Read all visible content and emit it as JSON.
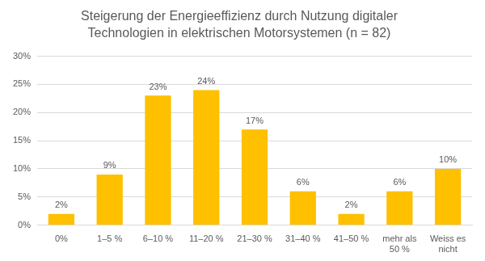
{
  "chart_data": {
    "type": "bar",
    "title": [
      "Steigerung der Energieeffizienz durch Nutzung digitaler",
      "Technologien in elektrischen Motorsystemen (n = 82)"
    ],
    "categories": [
      "0%",
      "1–5 %",
      "6–10 %",
      "11–20 %",
      "21–30 %",
      "31–40 %",
      "41–50 %",
      "mehr als 50 %",
      "Weiss es nicht"
    ],
    "values": [
      2,
      9,
      23,
      24,
      17,
      6,
      2,
      6,
      10
    ],
    "value_labels": [
      "2%",
      "9%",
      "23%",
      "24%",
      "17%",
      "6%",
      "2%",
      "6%",
      "10%"
    ],
    "color": "#ffc000",
    "ylim": [
      0,
      30
    ],
    "yticks": [
      {
        "value": 0,
        "label": "0%"
      },
      {
        "value": 5,
        "label": "5%"
      },
      {
        "value": 10,
        "label": "10%"
      },
      {
        "value": 15,
        "label": "15%"
      },
      {
        "value": 20,
        "label": "20%"
      },
      {
        "value": 25,
        "label": "25%"
      },
      {
        "value": 30,
        "label": "30%"
      }
    ],
    "grid": true,
    "data_labels": true
  }
}
